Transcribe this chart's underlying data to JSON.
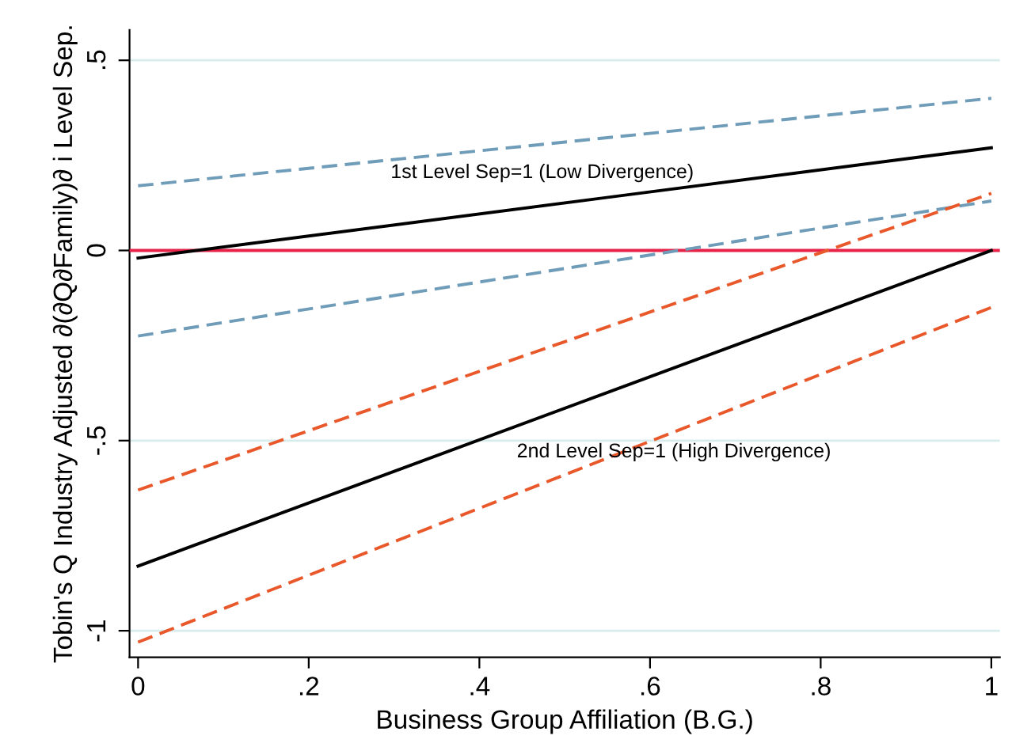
{
  "chart_data": {
    "type": "line",
    "xlabel": "Business Group Affiliation (B.G.)",
    "ylabel": "Tobin's Q Industry Adjusted ∂(∂Q∂Family)∂ i Level Sep.",
    "x": [
      0,
      1
    ],
    "series": [
      {
        "color": "#6f9cb8",
        "line_style": "dashed",
        "values": [
          0.17,
          0.4
        ]
      },
      {
        "color": "#000000",
        "line_style": "solid",
        "values": [
          -0.02,
          0.27
        ]
      },
      {
        "color": "#6f9cb8",
        "line_style": "dashed",
        "values": [
          -0.225,
          0.13
        ]
      },
      {
        "color": "#e8582a",
        "line_style": "dashed",
        "values": [
          -0.63,
          0.15
        ]
      },
      {
        "color": "#000000",
        "line_style": "solid",
        "values": [
          -0.83,
          0.0
        ]
      },
      {
        "color": "#e8582a",
        "line_style": "dashed",
        "values": [
          -1.03,
          -0.15
        ]
      }
    ],
    "ref_lines": [
      {
        "axis": "y",
        "value": 0,
        "label": null,
        "color": "#e8234a",
        "line_style": "solid"
      }
    ],
    "annotations": [
      "1st Level Sep=1 (Low Divergence)",
      "2nd Level Sep=1 (High Divergence)"
    ],
    "xlim": [
      -0.01,
      1.01
    ],
    "ylim": [
      -1.07,
      0.58
    ],
    "xticks": [
      0,
      {
        "value": 0.2,
        "label": ".2"
      },
      {
        "value": 0.4,
        "label": ".4"
      },
      {
        "value": 0.6,
        "label": ".6"
      },
      {
        "value": 0.8,
        "label": ".8"
      },
      1
    ],
    "yticks": [
      {
        "value": -1,
        "label": "-1"
      },
      {
        "value": -0.5,
        "label": "-.5"
      },
      0,
      {
        "value": 0.5,
        "label": ".5"
      }
    ],
    "grid": "y",
    "legend": false,
    "marker": "none"
  }
}
